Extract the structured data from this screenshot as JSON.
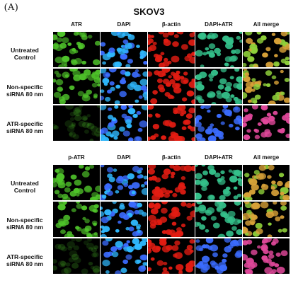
{
  "panel_label": "(A)",
  "title": "SKOV3",
  "blocks": [
    {
      "headers": [
        "ATR",
        "DAPI",
        "β-actin",
        "DAPI+ATR",
        "All merge"
      ],
      "rows": [
        {
          "label_line1": "Untreated",
          "label_line2": "Control"
        },
        {
          "label_line1": "Non-specific",
          "label_line2": "siRNA 80 nm"
        },
        {
          "label_line1": "ATR-specific",
          "label_line2": "siRNA 80 nm"
        }
      ]
    },
    {
      "headers": [
        "p-ATR",
        "DAPI",
        "β-actin",
        "DAPI+ATR",
        "All merge"
      ],
      "rows": [
        {
          "label_line1": "Untreated",
          "label_line2": "Control"
        },
        {
          "label_line1": "Non-specific",
          "label_line2": "siRNA 80 nm"
        },
        {
          "label_line1": "ATR-specific",
          "label_line2": "siRNA 80 nm"
        }
      ]
    }
  ],
  "colors": {
    "green_cell": "#4fc42a",
    "blue_nucleus": "#3b6cff",
    "red_cell": "#e21c12",
    "teal_merge": "#34c08a",
    "pink_merge": "#e0489a",
    "orange_merge": "#d9a238"
  }
}
